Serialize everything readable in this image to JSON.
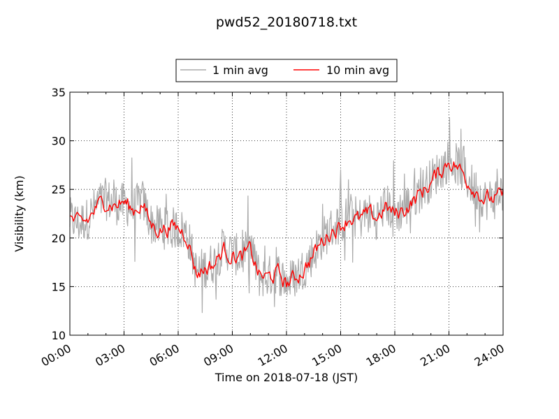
{
  "chart_data": {
    "type": "line",
    "title": "pwd52_20180718.txt",
    "xlabel": "Time on 2018-07-18 (JST)",
    "ylabel": "Visibility (km)",
    "xlim": [
      "00:00",
      "24:00"
    ],
    "ylim": [
      10,
      35
    ],
    "x_ticks": [
      "00:00",
      "03:00",
      "06:00",
      "09:00",
      "12:00",
      "15:00",
      "18:00",
      "21:00",
      "24:00"
    ],
    "y_ticks": [
      10,
      15,
      20,
      25,
      30,
      35
    ],
    "grid": true,
    "legend_position": "top-center",
    "series": [
      {
        "name": "1 min avg",
        "color": "#aaaaaa",
        "x": [
          "00:00",
          "00:30",
          "01:00",
          "01:30",
          "02:00",
          "02:30",
          "03:00",
          "03:30",
          "04:00",
          "04:30",
          "05:00",
          "05:30",
          "06:00",
          "06:30",
          "07:00",
          "07:30",
          "08:00",
          "08:30",
          "09:00",
          "09:30",
          "10:00",
          "10:30",
          "11:00",
          "11:30",
          "12:00",
          "12:30",
          "13:00",
          "13:30",
          "14:00",
          "14:30",
          "15:00",
          "15:30",
          "16:00",
          "16:30",
          "17:00",
          "17:30",
          "18:00",
          "18:30",
          "19:00",
          "19:30",
          "20:00",
          "20:30",
          "21:00",
          "21:30",
          "22:00",
          "22:30",
          "23:00",
          "23:30",
          "24:00"
        ],
        "values": [
          22,
          21.5,
          22,
          23.5,
          24,
          23.5,
          23.5,
          23,
          24,
          21.5,
          21,
          21,
          21,
          20.5,
          16.5,
          17,
          17.5,
          19,
          18.5,
          18,
          19,
          16,
          16,
          16.5,
          15.5,
          16,
          17,
          18.5,
          20,
          21,
          21.5,
          22.5,
          22,
          22.5,
          22,
          23.5,
          22.5,
          23,
          24,
          25,
          26,
          27,
          28,
          27.5,
          26,
          25,
          24,
          24,
          25
        ]
      },
      {
        "name": "10 min avg",
        "color": "#ff0000",
        "x": [
          "00:00",
          "00:30",
          "01:00",
          "01:30",
          "02:00",
          "02:30",
          "03:00",
          "03:30",
          "04:00",
          "04:30",
          "05:00",
          "05:30",
          "06:00",
          "06:30",
          "07:00",
          "07:30",
          "08:00",
          "08:30",
          "09:00",
          "09:30",
          "10:00",
          "10:30",
          "11:00",
          "11:30",
          "12:00",
          "12:30",
          "13:00",
          "13:30",
          "14:00",
          "14:30",
          "15:00",
          "15:30",
          "16:00",
          "16:30",
          "17:00",
          "17:30",
          "18:00",
          "18:30",
          "19:00",
          "19:30",
          "20:00",
          "20:30",
          "21:00",
          "21:30",
          "22:00",
          "22:30",
          "23:00",
          "23:30",
          "24:00"
        ],
        "values": [
          22,
          21.3,
          21.8,
          23.2,
          23.8,
          23.4,
          23.7,
          22.8,
          23.6,
          21.3,
          20.9,
          21.1,
          21,
          20.3,
          16.4,
          16.9,
          17.3,
          18.8,
          18.3,
          17.9,
          18.7,
          16.1,
          15.9,
          16.4,
          15.3,
          15.9,
          16.9,
          18.3,
          19.7,
          20.8,
          21.3,
          22.2,
          21.8,
          22.3,
          22.1,
          23.2,
          22.4,
          22.9,
          23.8,
          24.7,
          25.7,
          26.8,
          28,
          27.3,
          26,
          25,
          24,
          24,
          24.3
        ]
      }
    ]
  }
}
